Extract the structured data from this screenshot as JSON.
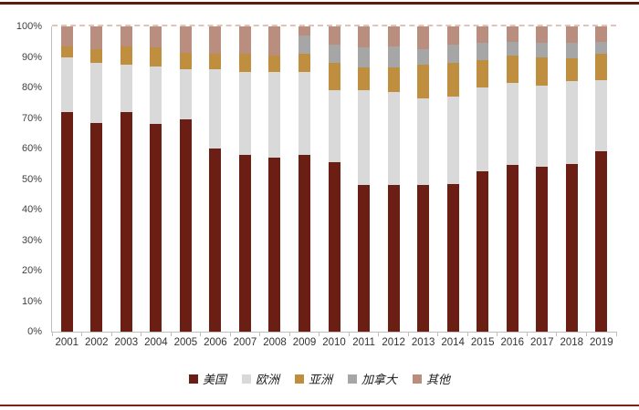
{
  "chart_data": {
    "type": "bar",
    "subtype": "stacked-100-percent",
    "title": "",
    "xlabel": "",
    "ylabel": "",
    "ylim": [
      0,
      100
    ],
    "grid": "dashed gridline at 100% only",
    "legend_position": "bottom",
    "yticks": [
      "0%",
      "10%",
      "20%",
      "30%",
      "40%",
      "50%",
      "60%",
      "70%",
      "80%",
      "90%",
      "100%"
    ],
    "categories": [
      "2001",
      "2002",
      "2003",
      "2004",
      "2005",
      "2006",
      "2007",
      "2008",
      "2009",
      "2010",
      "2011",
      "2012",
      "2013",
      "2014",
      "2015",
      "2016",
      "2017",
      "2018",
      "2019"
    ],
    "series": [
      {
        "name": "美国",
        "color": "#6B1F14",
        "values": [
          72,
          68.5,
          72,
          68,
          69.5,
          60,
          58,
          57,
          58,
          55.5,
          48,
          48,
          48,
          48.5,
          52.5,
          54.5,
          54,
          55,
          59
        ]
      },
      {
        "name": "欧洲",
        "color": "#D9D9D9",
        "values": [
          18,
          19.5,
          15.5,
          19,
          16.5,
          26,
          27,
          28,
          27,
          23.5,
          31,
          30.5,
          28.5,
          28.5,
          27.5,
          27,
          26.5,
          27,
          23.5
        ]
      },
      {
        "name": "亚洲",
        "color": "#BF8F3F",
        "values": [
          3.5,
          4.5,
          6,
          6,
          5.5,
          5,
          6,
          5.5,
          6,
          9,
          7.5,
          8,
          11,
          11,
          9,
          9,
          9.5,
          7.5,
          8.5
        ]
      },
      {
        "name": "加拿大",
        "color": "#A6A6A6",
        "values": [
          0,
          0,
          0,
          0,
          0,
          0,
          0,
          0,
          6,
          6,
          6.5,
          7,
          5,
          6,
          5.5,
          4.5,
          4.5,
          5,
          4
        ]
      },
      {
        "name": "其他",
        "color": "#B98E7E",
        "values": [
          6.5,
          7.5,
          6.5,
          7,
          8.5,
          9,
          9,
          9.5,
          3,
          6,
          7,
          6.5,
          7.5,
          6,
          5.5,
          5,
          5.5,
          5.5,
          5
        ]
      }
    ]
  },
  "decorations": {
    "top_rule_color": "#5E1B10",
    "bottom_rule_color": "#7E201A",
    "axis_line_color": "#BFBFBF",
    "gridline_100_color": "#E3C3B7",
    "tick_label_color": "#404040"
  }
}
